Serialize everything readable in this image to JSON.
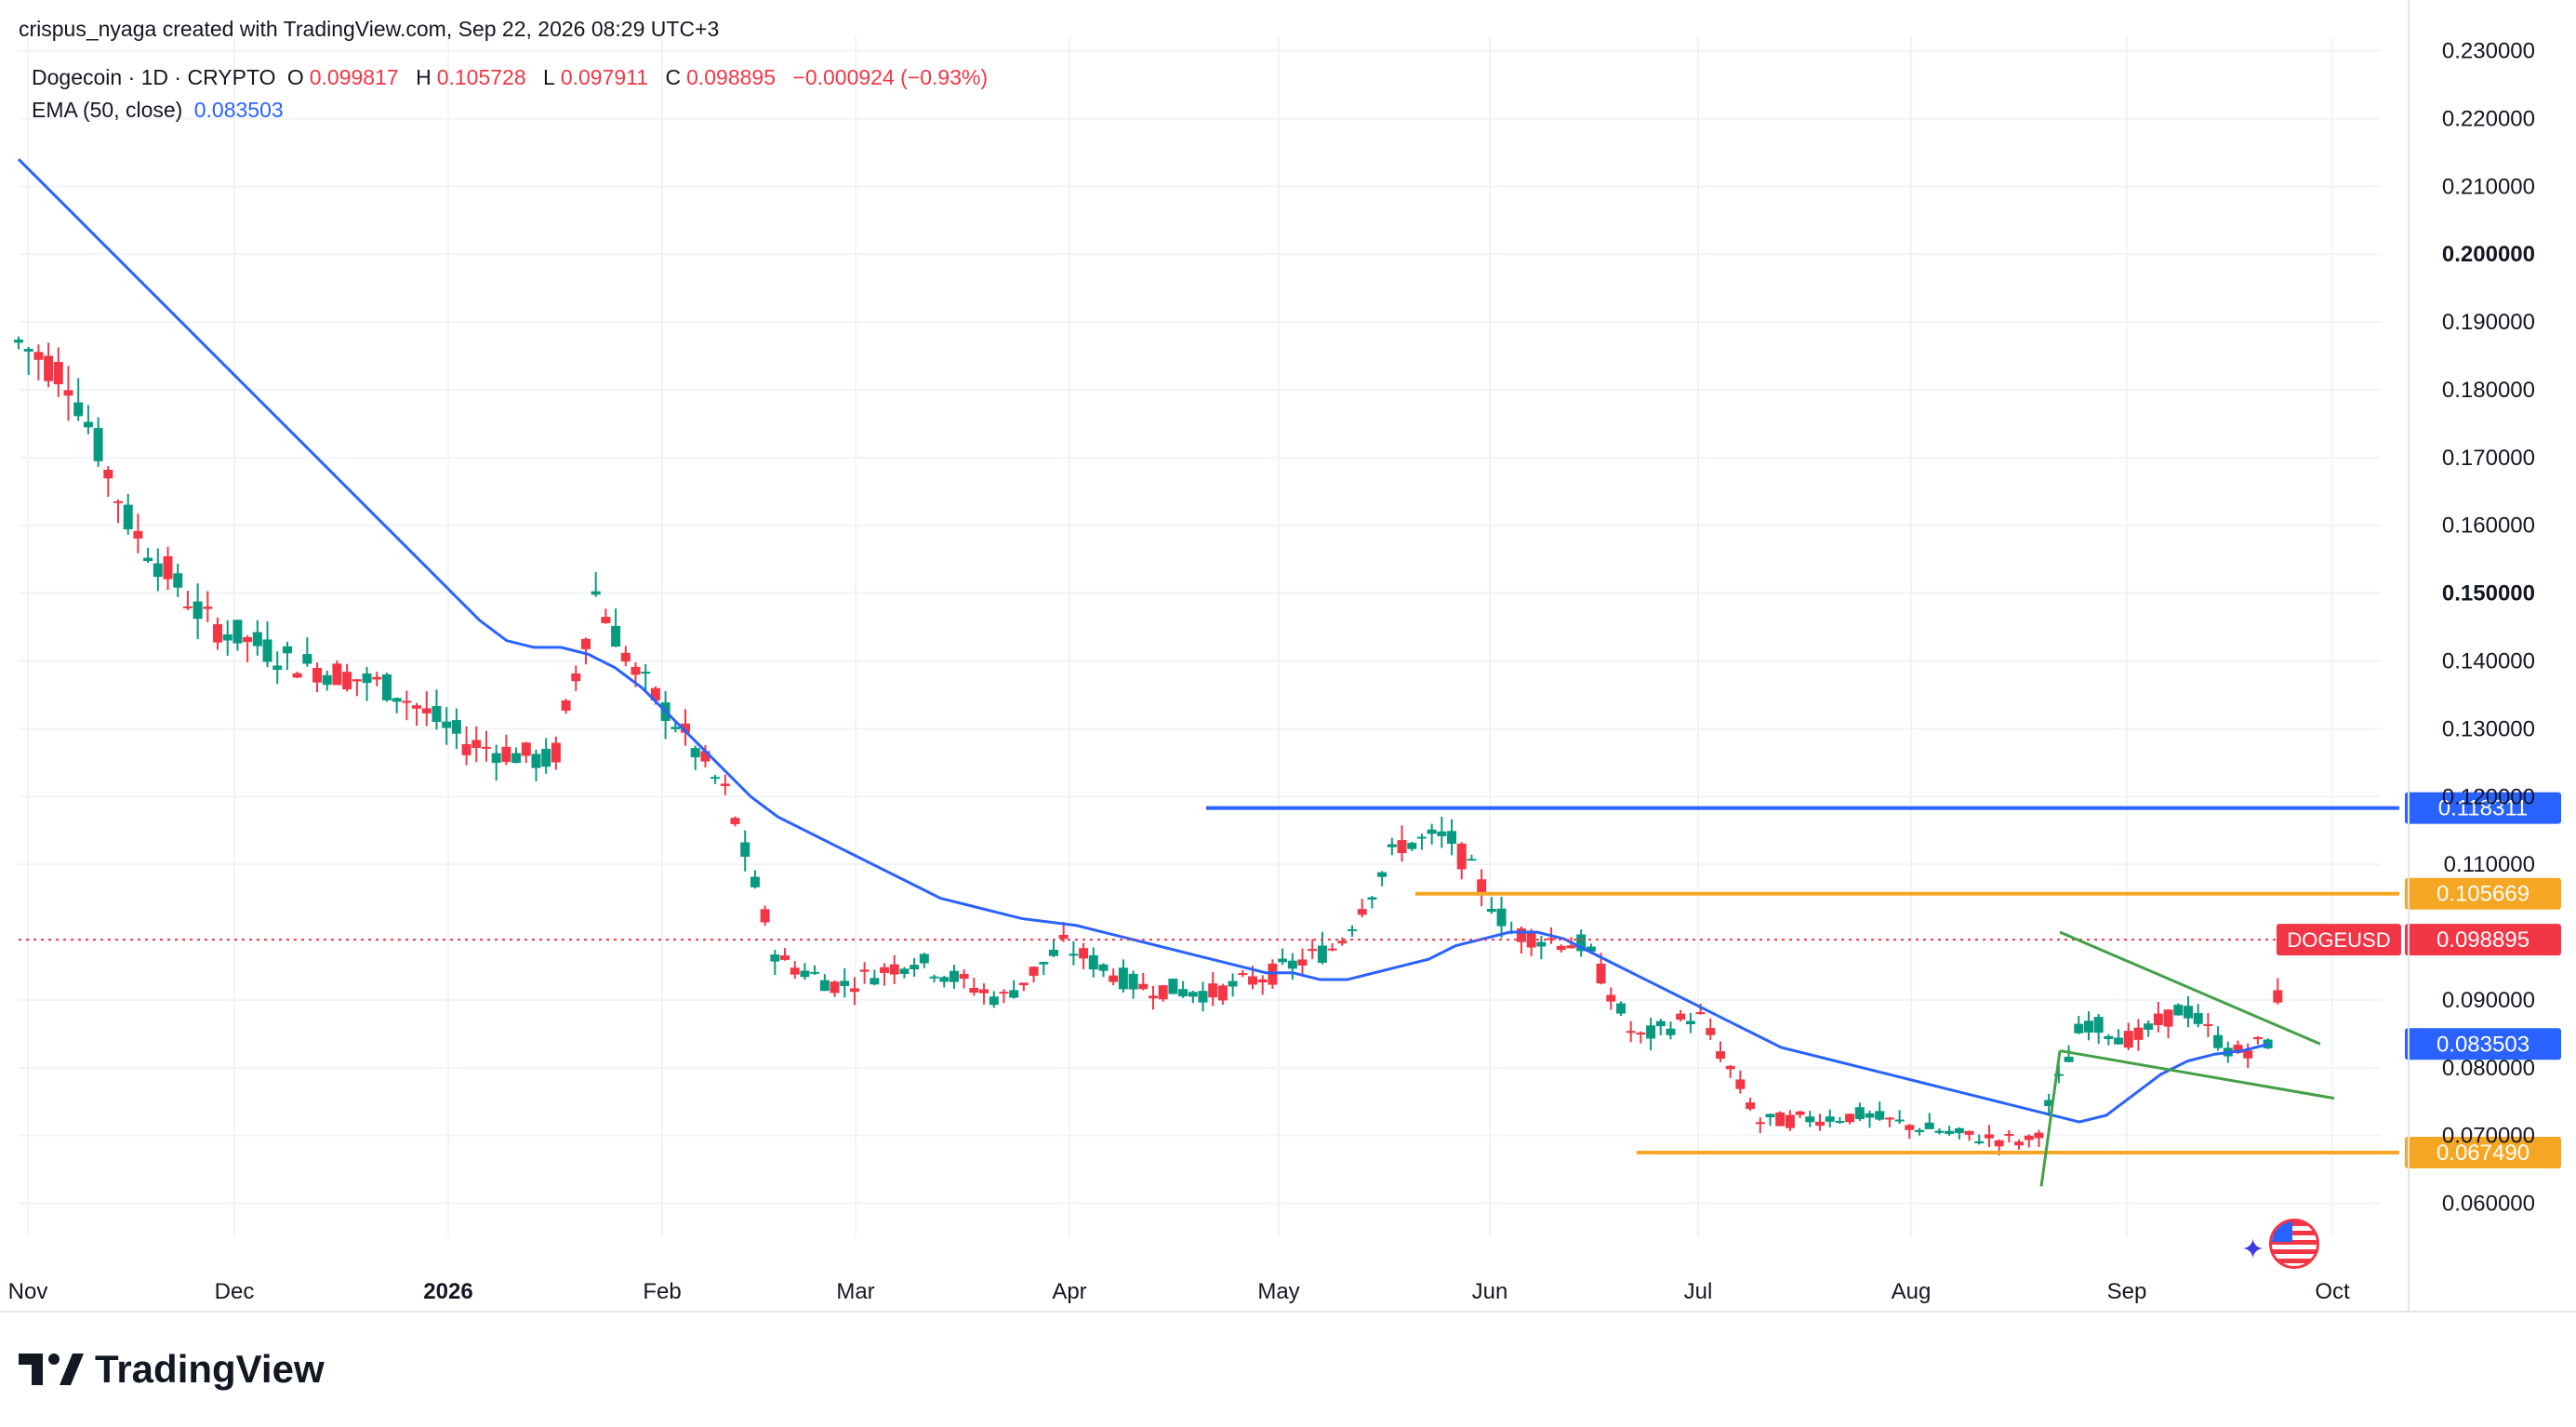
{
  "header": {
    "attribution": "crispus_nyaga created with TradingView.com, Sep 22, 2026 08:29 UTC+3"
  },
  "legend": {
    "symbol": "Dogecoin · 1D · CRYPTO",
    "open_label": "O",
    "open": "0.099817",
    "high_label": "H",
    "high": "0.105728",
    "low_label": "L",
    "low": "0.097911",
    "close_label": "C",
    "close": "0.098895",
    "change": "−0.000924 (−0.93%)",
    "ema_label": "EMA (50, close)",
    "ema_value": "0.083503"
  },
  "brand": {
    "name": "TradingView",
    "logo_icon": "tradingview-logo-icon",
    "flag_icon": "us-flag-icon"
  },
  "colors": {
    "up": "#089981",
    "down": "#f23645",
    "ema": "#2962ff",
    "resistance": "#2962ff",
    "orange": "#f5a623",
    "green": "#43a047",
    "grid": "#f0f3fa",
    "axis_text": "#131722"
  },
  "chart_data": {
    "type": "candlestick",
    "title": "Dogecoin · 1D · CRYPTO",
    "y_axis": {
      "ylim": [
        0.055,
        0.232
      ],
      "ticks": [
        "0.230000",
        "0.220000",
        "0.210000",
        "0.200000",
        "0.190000",
        "0.180000",
        "0.170000",
        "0.160000",
        "0.150000",
        "0.140000",
        "0.130000",
        "0.120000",
        "0.110000",
        "0.090000",
        "0.080000",
        "0.070000",
        "0.060000"
      ],
      "bold_ticks": [
        "0.200000",
        "0.150000"
      ]
    },
    "x_axis": {
      "labels": [
        "Nov",
        "Dec",
        "2026",
        "Feb",
        "Mar",
        "Apr",
        "May",
        "Jun",
        "Jul",
        "Aug",
        "Sep",
        "Oct"
      ],
      "bold_labels": [
        "2026"
      ]
    },
    "ema_50": [
      0.214,
      0.21,
      0.206,
      0.202,
      0.198,
      0.194,
      0.19,
      0.186,
      0.182,
      0.178,
      0.174,
      0.17,
      0.166,
      0.162,
      0.158,
      0.154,
      0.15,
      0.146,
      0.143,
      0.142,
      0.142,
      0.141,
      0.139,
      0.136,
      0.132,
      0.128,
      0.124,
      0.12,
      0.117,
      0.115,
      0.113,
      0.111,
      0.109,
      0.107,
      0.105,
      0.104,
      0.103,
      0.102,
      0.1015,
      0.101,
      0.1,
      0.099,
      0.098,
      0.097,
      0.096,
      0.095,
      0.094,
      0.094,
      0.093,
      0.093,
      0.094,
      0.095,
      0.096,
      0.098,
      0.099,
      0.1,
      0.1,
      0.099,
      0.097,
      0.095,
      0.093,
      0.091,
      0.089,
      0.087,
      0.085,
      0.083,
      0.082,
      0.081,
      0.08,
      0.079,
      0.078,
      0.077,
      0.076,
      0.075,
      0.074,
      0.073,
      0.072,
      0.073,
      0.076,
      0.079,
      0.081,
      0.082,
      0.0825,
      0.0835
    ],
    "price_levels": [
      {
        "value": 0.118311,
        "label": "0.118311",
        "color": "#2962ff"
      },
      {
        "value": 0.105669,
        "label": "0.105669",
        "color": "#f5a623"
      },
      {
        "value": 0.098895,
        "label": "0.098895",
        "color": "#f23645",
        "name": "DOGEUSD"
      },
      {
        "value": 0.083503,
        "label": "0.083503",
        "color": "#2962ff"
      },
      {
        "value": 0.06749,
        "label": "0.067490",
        "color": "#f5a623"
      }
    ],
    "current_symbol": "DOGEUSD",
    "last_price": 0.098895
  }
}
